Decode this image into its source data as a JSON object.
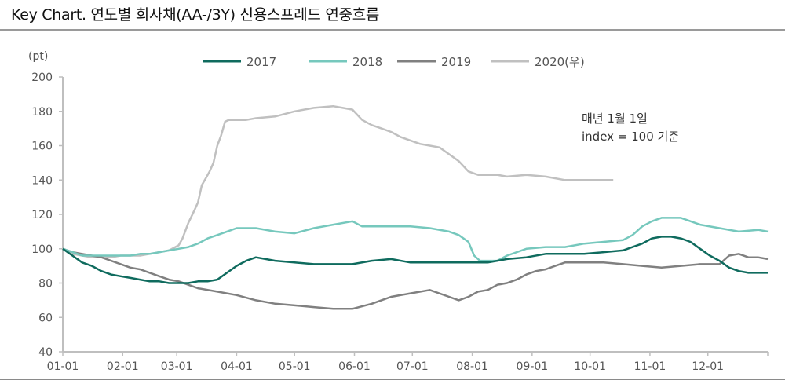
{
  "title": "Key Chart. 연도별 회사채(AA-/3Y) 신용스프레드 연중흐름",
  "y_unit": "(pt)",
  "note": {
    "line1": "매년 1월 1일",
    "line2": "index = 100 기준"
  },
  "legend": [
    {
      "label": "2017",
      "color": "#0f6b5e"
    },
    {
      "label": "2018",
      "color": "#76c8bd"
    },
    {
      "label": "2019",
      "color": "#808080"
    },
    {
      "label": "2020(우)",
      "color": "#c0c0c0"
    }
  ],
  "chart_data": {
    "type": "line",
    "title": "Key Chart. 연도별 회사채(AA-/3Y) 신용스프레드 연중흐름",
    "xlabel": "",
    "ylabel": "(pt)",
    "ylim": [
      40,
      200
    ],
    "yticks": [
      40,
      60,
      80,
      100,
      120,
      140,
      160,
      180,
      200
    ],
    "x_tick_labels": [
      "01-01",
      "02-01",
      "03-01",
      "04-01",
      "05-01",
      "06-01",
      "07-01",
      "08-01",
      "09-01",
      "10-01",
      "11-01",
      "12-01"
    ],
    "grid": false,
    "legend_position": "top",
    "annotation": "매년 1월 1일 index = 100 기준",
    "x_unit": "day of year (0-365)",
    "series": [
      {
        "name": "2017",
        "color": "#0f6b5e",
        "x": [
          0,
          5,
          10,
          15,
          20,
          25,
          30,
          35,
          40,
          45,
          50,
          55,
          60,
          65,
          70,
          75,
          80,
          85,
          90,
          95,
          100,
          105,
          110,
          120,
          130,
          140,
          150,
          160,
          170,
          180,
          190,
          200,
          210,
          220,
          230,
          240,
          250,
          260,
          270,
          280,
          290,
          300,
          305,
          310,
          315,
          320,
          325,
          330,
          335,
          340,
          345,
          350,
          355,
          360,
          365
        ],
        "values": [
          100,
          96,
          92,
          90,
          87,
          85,
          84,
          83,
          82,
          81,
          81,
          80,
          80,
          80,
          81,
          81,
          82,
          86,
          90,
          93,
          95,
          94,
          93,
          92,
          91,
          91,
          91,
          93,
          94,
          92,
          92,
          92,
          92,
          92,
          94,
          95,
          97,
          97,
          97,
          98,
          99,
          103,
          106,
          107,
          107,
          106,
          104,
          100,
          96,
          93,
          89,
          87,
          86,
          86,
          86
        ]
      },
      {
        "name": "2018",
        "color": "#76c8bd",
        "x": [
          0,
          5,
          10,
          15,
          20,
          25,
          30,
          35,
          40,
          45,
          50,
          55,
          60,
          65,
          70,
          75,
          80,
          85,
          90,
          95,
          100,
          110,
          120,
          130,
          140,
          150,
          155,
          160,
          170,
          180,
          190,
          200,
          205,
          210,
          213,
          216,
          220,
          225,
          230,
          240,
          250,
          260,
          270,
          280,
          290,
          295,
          300,
          305,
          310,
          320,
          330,
          340,
          350,
          360,
          365
        ],
        "values": [
          100,
          98,
          96,
          96,
          96,
          96,
          96,
          96,
          97,
          97,
          98,
          99,
          100,
          101,
          103,
          106,
          108,
          110,
          112,
          112,
          112,
          110,
          109,
          112,
          114,
          116,
          113,
          113,
          113,
          113,
          112,
          110,
          108,
          104,
          96,
          93,
          93,
          93,
          96,
          100,
          101,
          101,
          103,
          104,
          105,
          108,
          113,
          116,
          118,
          118,
          114,
          112,
          110,
          111,
          110
        ]
      },
      {
        "name": "2019",
        "color": "#808080",
        "x": [
          0,
          5,
          10,
          15,
          20,
          25,
          30,
          35,
          40,
          45,
          50,
          55,
          60,
          65,
          70,
          80,
          90,
          100,
          110,
          120,
          130,
          140,
          150,
          160,
          170,
          180,
          190,
          200,
          205,
          210,
          215,
          220,
          225,
          230,
          235,
          240,
          245,
          250,
          255,
          260,
          270,
          280,
          290,
          300,
          310,
          320,
          330,
          335,
          340,
          345,
          350,
          355,
          360,
          365
        ],
        "values": [
          100,
          98,
          97,
          96,
          95,
          93,
          91,
          89,
          88,
          86,
          84,
          82,
          81,
          79,
          77,
          75,
          73,
          70,
          68,
          67,
          66,
          65,
          65,
          68,
          72,
          74,
          76,
          72,
          70,
          72,
          75,
          76,
          79,
          80,
          82,
          85,
          87,
          88,
          90,
          92,
          92,
          92,
          91,
          90,
          89,
          90,
          91,
          91,
          91,
          96,
          97,
          95,
          95,
          94
        ]
      },
      {
        "name": "2020(우)",
        "color": "#c0c0c0",
        "x": [
          0,
          5,
          10,
          15,
          20,
          25,
          30,
          35,
          40,
          45,
          50,
          55,
          60,
          62,
          65,
          68,
          70,
          72,
          74,
          76,
          78,
          80,
          82,
          84,
          86,
          88,
          90,
          95,
          100,
          110,
          120,
          130,
          140,
          145,
          150,
          155,
          160,
          165,
          170,
          175,
          180,
          185,
          190,
          195,
          200,
          205,
          210,
          215,
          220,
          225,
          230,
          240,
          250,
          260,
          270,
          280,
          285
        ],
        "values": [
          100,
          97,
          96,
          95,
          95,
          95,
          96,
          96,
          96,
          97,
          98,
          99,
          102,
          106,
          115,
          122,
          127,
          137,
          141,
          145,
          150,
          160,
          166,
          174,
          175,
          175,
          175,
          175,
          176,
          177,
          180,
          182,
          183,
          182,
          181,
          175,
          172,
          170,
          168,
          165,
          163,
          161,
          160,
          159,
          155,
          151,
          145,
          143,
          143,
          143,
          142,
          143,
          142,
          140,
          140,
          140,
          140
        ]
      }
    ]
  }
}
